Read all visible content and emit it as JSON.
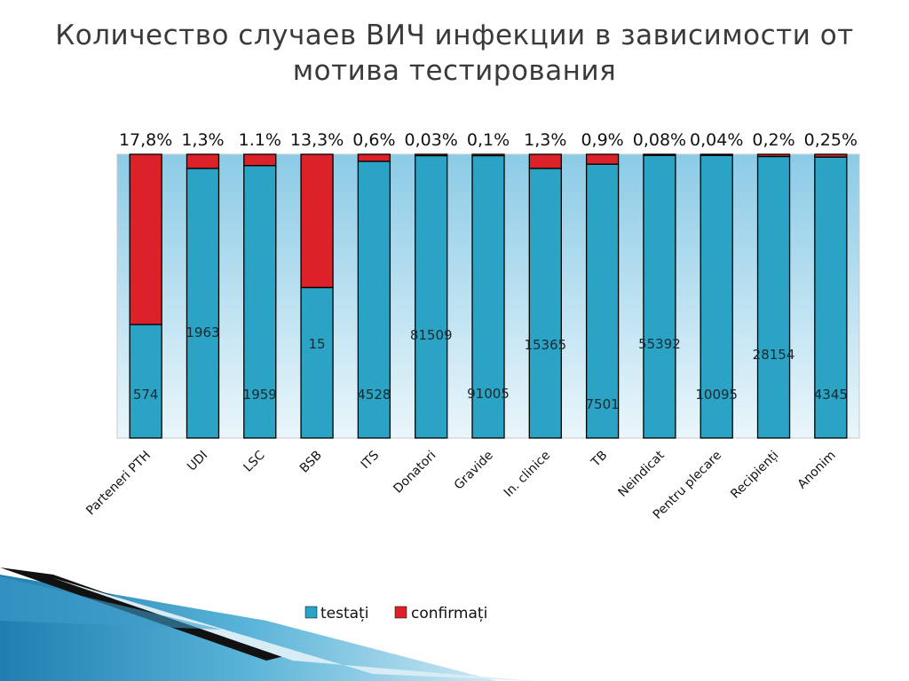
{
  "title": "Количество случаев ВИЧ инфекции в зависимости от мотива тестирования",
  "chart_data": {
    "type": "bar",
    "stacked": true,
    "normalized": true,
    "categories": [
      "Parteneri PTH",
      "UDI",
      "LSC",
      "BSB",
      "ITS",
      "Donatori",
      "Gravide",
      "In. clinice",
      "TB",
      "Neindicat",
      "Pentru plecare",
      "Recipienți",
      "Anonim"
    ],
    "percent_labels": [
      "17,8%",
      "1,3%",
      "1.1%",
      "13,3%",
      "0,6%",
      "0,03%",
      "0,1%",
      "1,3%",
      "0,9%",
      "0,08%",
      "0,04%",
      "0,2%",
      "0,25%"
    ],
    "series": [
      {
        "name": "testați",
        "color": "#2ba3c4",
        "value_labels": [
          "574",
          "1963",
          "1959",
          "15",
          "4528",
          "81509",
          "91005",
          "15365",
          "7501",
          "55392",
          "10095",
          "28154",
          "4345"
        ],
        "share_percent": [
          40,
          95,
          96,
          53,
          97.5,
          99.5,
          99.5,
          95,
          96.5,
          99.6,
          99.6,
          99.2,
          99
        ]
      },
      {
        "name": "confirmați",
        "color": "#dc2128",
        "share_percent": [
          60,
          5,
          4,
          47,
          2.5,
          0.5,
          0.5,
          5,
          3.5,
          0.4,
          0.4,
          0.8,
          1
        ]
      }
    ],
    "ylim": [
      0,
      100
    ],
    "grid": false,
    "legend_position": "bottom"
  }
}
